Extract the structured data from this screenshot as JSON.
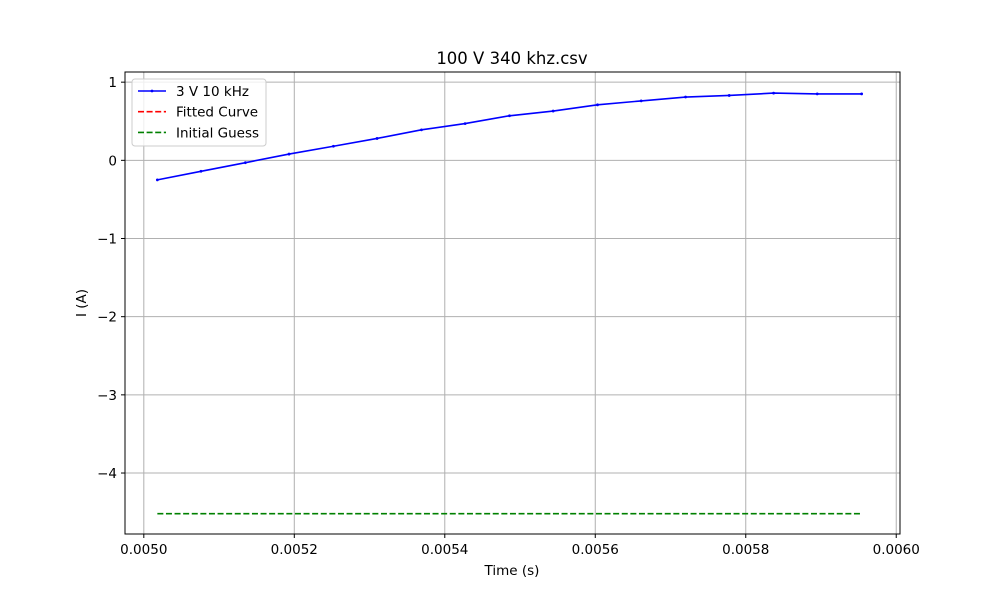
{
  "chart_data": {
    "type": "line",
    "title": "100 V 340 khz.csv",
    "xlabel": "Time (s)",
    "ylabel": "I (A)",
    "xlim": [
      0.004975,
      0.006005
    ],
    "ylim": [
      -4.78,
      1.13
    ],
    "x_ticks": [
      0.005,
      0.0052,
      0.0054,
      0.0056,
      0.0058,
      0.006
    ],
    "x_tick_labels": [
      "0.0050",
      "0.0052",
      "0.0054",
      "0.0056",
      "0.0058",
      "0.0060"
    ],
    "y_ticks": [
      1,
      0,
      -1,
      -2,
      -3,
      -4
    ],
    "y_tick_labels": [
      "1",
      "0",
      "−1",
      "−2",
      "−3",
      "−4"
    ],
    "grid": true,
    "legend_position": "upper-left",
    "series": [
      {
        "name": "3 V 10 kHz",
        "color": "#0000ff",
        "style": "solid-with-point-markers",
        "x": [
          0.005018,
          0.005076,
          0.005135,
          0.005193,
          0.005252,
          0.00531,
          0.005369,
          0.005427,
          0.005486,
          0.005544,
          0.005603,
          0.005661,
          0.00572,
          0.005778,
          0.005837,
          0.005895,
          0.005954
        ],
        "y": [
          -0.25,
          -0.14,
          -0.03,
          0.08,
          0.18,
          0.28,
          0.39,
          0.47,
          0.57,
          0.63,
          0.71,
          0.76,
          0.81,
          0.83,
          0.86,
          0.85,
          0.85
        ]
      },
      {
        "name": "Fitted Curve",
        "color": "#ff0000",
        "style": "dashed",
        "x": [],
        "y": []
      },
      {
        "name": "Initial Guess",
        "color": "#008000",
        "style": "dashed",
        "x": [
          0.005018,
          0.005954
        ],
        "y": [
          -4.52,
          -4.52
        ]
      }
    ]
  }
}
